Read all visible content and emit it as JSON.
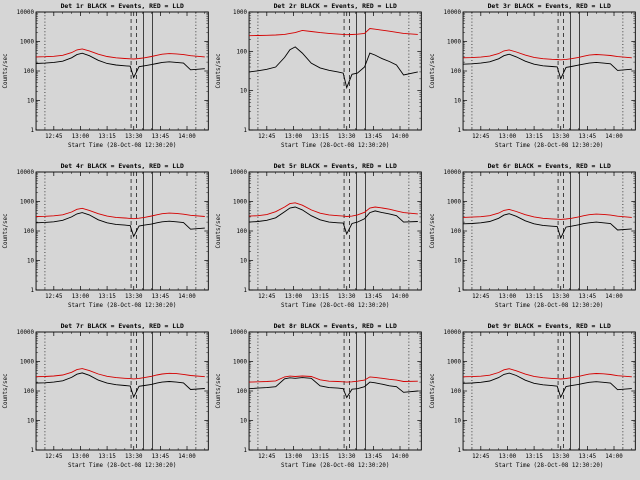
{
  "page": {
    "background": "#d6d6d6"
  },
  "shared_x_minutes_after_1230": [
    5,
    10,
    15,
    20,
    25,
    28,
    31,
    35,
    40,
    45,
    50,
    55,
    58,
    60,
    63,
    66,
    70,
    73,
    76,
    80,
    84,
    88,
    92,
    100
  ],
  "chart_data": [
    {
      "type": "line",
      "title": "Det 1r BLACK = Events, RED = LLD",
      "xlabel": "Start Time (28-Oct-08 12:30:20)",
      "ylabel": "Counts/sec",
      "xlim": [
        5,
        102
      ],
      "xtick_values": [
        15,
        30,
        45,
        60,
        75,
        90
      ],
      "xtick_labels": [
        "12:45",
        "13:00",
        "13:15",
        "13:30",
        "13:45",
        "14:00"
      ],
      "ylim": [
        1,
        10000
      ],
      "ytick_labels": [
        "1",
        "10",
        "100",
        "1000",
        "10000"
      ],
      "grid": false,
      "vlines": [
        {
          "x": 10,
          "style": "dotted"
        },
        {
          "x": 95,
          "style": "dotted"
        },
        {
          "x": 58.5,
          "style": "dashed"
        },
        {
          "x": 61.5,
          "style": "dashed"
        },
        {
          "x": 65.5,
          "style": "solid"
        },
        {
          "x": 70.5,
          "style": "solid"
        }
      ],
      "series": [
        {
          "name": "Events",
          "color": "#000000",
          "values": [
            180,
            185,
            195,
            215,
            280,
            360,
            400,
            330,
            230,
            180,
            160,
            150,
            145,
            60,
            140,
            150,
            165,
            180,
            195,
            205,
            195,
            185,
            110,
            120
          ]
        },
        {
          "name": "LLD",
          "color": "#d40000",
          "values": [
            300,
            305,
            315,
            340,
            420,
            520,
            560,
            480,
            370,
            310,
            280,
            265,
            260,
            255,
            265,
            280,
            310,
            340,
            370,
            390,
            380,
            360,
            330,
            300
          ]
        }
      ]
    },
    {
      "type": "line",
      "title": "Det 2r BLACK = Events, RED = LLD",
      "xlabel": "Start Time (28-Oct-08 12:30:20)",
      "ylabel": "Counts/sec",
      "xlim": [
        5,
        102
      ],
      "xtick_values": [
        15,
        30,
        45,
        60,
        75,
        90
      ],
      "xtick_labels": [
        "12:45",
        "13:00",
        "13:15",
        "13:30",
        "13:45",
        "14:00"
      ],
      "ylim": [
        1,
        1000
      ],
      "ytick_labels": [
        "1",
        "10",
        "100",
        "1000"
      ],
      "grid": false,
      "vlines": [
        {
          "x": 10,
          "style": "dotted"
        },
        {
          "x": 95,
          "style": "dotted"
        },
        {
          "x": 58.5,
          "style": "dashed"
        },
        {
          "x": 61.5,
          "style": "dashed"
        },
        {
          "x": 65.5,
          "style": "solid"
        },
        {
          "x": 70.5,
          "style": "solid"
        }
      ],
      "series": [
        {
          "name": "Events",
          "color": "#000000",
          "values": [
            30,
            32,
            35,
            40,
            70,
            110,
            130,
            90,
            50,
            38,
            33,
            30,
            28,
            12,
            26,
            28,
            40,
            90,
            80,
            65,
            55,
            45,
            25,
            30
          ]
        },
        {
          "name": "LLD",
          "color": "#d40000",
          "values": [
            250,
            252,
            255,
            260,
            270,
            285,
            300,
            340,
            320,
            300,
            285,
            275,
            270,
            265,
            268,
            272,
            285,
            380,
            365,
            345,
            325,
            305,
            285,
            270
          ]
        }
      ]
    },
    {
      "type": "line",
      "title": "Det 3r BLACK = Events, RED = LLD",
      "xlabel": "Start Time (28-Oct-08 12:30:20)",
      "ylabel": "Counts/sec",
      "xlim": [
        5,
        102
      ],
      "xtick_values": [
        15,
        30,
        45,
        60,
        75,
        90
      ],
      "xtick_labels": [
        "12:45",
        "13:00",
        "13:15",
        "13:30",
        "13:45",
        "14:00"
      ],
      "ylim": [
        1,
        10000
      ],
      "ytick_labels": [
        "1",
        "10",
        "100",
        "1000",
        "10000"
      ],
      "grid": false,
      "vlines": [
        {
          "x": 10,
          "style": "dotted"
        },
        {
          "x": 95,
          "style": "dotted"
        },
        {
          "x": 58.5,
          "style": "dashed"
        },
        {
          "x": 61.5,
          "style": "dashed"
        },
        {
          "x": 65.5,
          "style": "solid"
        },
        {
          "x": 70.5,
          "style": "solid"
        }
      ],
      "series": [
        {
          "name": "Events",
          "color": "#000000",
          "values": [
            170,
            175,
            185,
            205,
            260,
            330,
            370,
            300,
            215,
            170,
            150,
            142,
            138,
            55,
            132,
            142,
            158,
            172,
            185,
            195,
            185,
            175,
            105,
            115
          ]
        },
        {
          "name": "LLD",
          "color": "#d40000",
          "values": [
            280,
            285,
            295,
            320,
            390,
            480,
            520,
            440,
            345,
            290,
            262,
            250,
            245,
            240,
            248,
            262,
            290,
            318,
            345,
            362,
            352,
            335,
            308,
            280
          ]
        }
      ]
    },
    {
      "type": "line",
      "title": "Det 4r BLACK = Events, RED = LLD",
      "xlabel": "Start Time (28-Oct-08 12:30:20)",
      "ylabel": "Counts/sec",
      "xlim": [
        5,
        102
      ],
      "xtick_values": [
        15,
        30,
        45,
        60,
        75,
        90
      ],
      "xtick_labels": [
        "12:45",
        "13:00",
        "13:15",
        "13:30",
        "13:45",
        "14:00"
      ],
      "ylim": [
        1,
        10000
      ],
      "ytick_labels": [
        "1",
        "10",
        "100",
        "1000",
        "10000"
      ],
      "grid": false,
      "vlines": [
        {
          "x": 10,
          "style": "dotted"
        },
        {
          "x": 95,
          "style": "dotted"
        },
        {
          "x": 58.5,
          "style": "dashed"
        },
        {
          "x": 61.5,
          "style": "dashed"
        },
        {
          "x": 65.5,
          "style": "solid"
        },
        {
          "x": 70.5,
          "style": "solid"
        }
      ],
      "series": [
        {
          "name": "Events",
          "color": "#000000",
          "values": [
            190,
            195,
            205,
            230,
            300,
            380,
            420,
            350,
            240,
            190,
            168,
            158,
            152,
            65,
            148,
            158,
            172,
            190,
            205,
            215,
            205,
            192,
            115,
            125
          ]
        },
        {
          "name": "LLD",
          "color": "#d40000",
          "values": [
            310,
            315,
            328,
            355,
            440,
            545,
            590,
            500,
            385,
            320,
            290,
            275,
            268,
            262,
            272,
            290,
            322,
            355,
            385,
            405,
            395,
            372,
            340,
            310
          ]
        }
      ]
    },
    {
      "type": "line",
      "title": "Det 5r BLACK = Events, RED = LLD",
      "xlabel": "Start Time (28-Oct-08 12:30:20)",
      "ylabel": "Counts/sec",
      "xlim": [
        5,
        102
      ],
      "xtick_values": [
        15,
        30,
        45,
        60,
        75,
        90
      ],
      "xtick_labels": [
        "12:45",
        "13:00",
        "13:15",
        "13:30",
        "13:45",
        "14:00"
      ],
      "ylim": [
        1,
        10000
      ],
      "ytick_labels": [
        "1",
        "10",
        "100",
        "1000",
        "10000"
      ],
      "grid": false,
      "vlines": [
        {
          "x": 10,
          "style": "dotted"
        },
        {
          "x": 95,
          "style": "dotted"
        },
        {
          "x": 58.5,
          "style": "dashed"
        },
        {
          "x": 61.5,
          "style": "dashed"
        },
        {
          "x": 65.5,
          "style": "solid"
        },
        {
          "x": 70.5,
          "style": "solid"
        }
      ],
      "series": [
        {
          "name": "Events",
          "color": "#000000",
          "values": [
            200,
            210,
            230,
            280,
            450,
            600,
            650,
            520,
            330,
            240,
            200,
            190,
            185,
            80,
            180,
            200,
            260,
            420,
            480,
            420,
            380,
            330,
            200,
            210
          ]
        },
        {
          "name": "LLD",
          "color": "#d40000",
          "values": [
            320,
            330,
            360,
            450,
            650,
            850,
            900,
            750,
            520,
            400,
            350,
            330,
            320,
            310,
            320,
            350,
            430,
            600,
            650,
            600,
            550,
            480,
            420,
            380
          ]
        }
      ]
    },
    {
      "type": "line",
      "title": "Det 6r BLACK = Events, RED = LLD",
      "xlabel": "Start Time (28-Oct-08 12:30:20)",
      "ylabel": "Counts/sec",
      "xlim": [
        5,
        102
      ],
      "xtick_values": [
        15,
        30,
        45,
        60,
        75,
        90
      ],
      "xtick_labels": [
        "12:45",
        "13:00",
        "13:15",
        "13:30",
        "13:45",
        "14:00"
      ],
      "ylim": [
        1,
        10000
      ],
      "ytick_labels": [
        "1",
        "10",
        "100",
        "1000",
        "10000"
      ],
      "grid": false,
      "vlines": [
        {
          "x": 10,
          "style": "dotted"
        },
        {
          "x": 95,
          "style": "dotted"
        },
        {
          "x": 58.5,
          "style": "dashed"
        },
        {
          "x": 61.5,
          "style": "dashed"
        },
        {
          "x": 65.5,
          "style": "solid"
        },
        {
          "x": 70.5,
          "style": "solid"
        }
      ],
      "series": [
        {
          "name": "Events",
          "color": "#000000",
          "values": [
            175,
            180,
            190,
            210,
            270,
            345,
            385,
            315,
            222,
            175,
            155,
            146,
            141,
            58,
            136,
            146,
            162,
            178,
            190,
            200,
            190,
            180,
            108,
            118
          ]
        },
        {
          "name": "LLD",
          "color": "#d40000",
          "values": [
            290,
            295,
            305,
            330,
            405,
            500,
            540,
            458,
            356,
            300,
            270,
            258,
            252,
            247,
            255,
            270,
            300,
            330,
            356,
            375,
            365,
            347,
            318,
            290
          ]
        }
      ]
    },
    {
      "type": "line",
      "title": "Det 7r BLACK = Events, RED = LLD",
      "xlabel": "Start Time (28-Oct-08 12:30:20)",
      "ylabel": "Counts/sec",
      "xlim": [
        5,
        102
      ],
      "xtick_values": [
        15,
        30,
        45,
        60,
        75,
        90
      ],
      "xtick_labels": [
        "12:45",
        "13:00",
        "13:15",
        "13:30",
        "13:45",
        "14:00"
      ],
      "ylim": [
        1,
        10000
      ],
      "ytick_labels": [
        "1",
        "10",
        "100",
        "1000",
        "10000"
      ],
      "grid": false,
      "vlines": [
        {
          "x": 10,
          "style": "dotted"
        },
        {
          "x": 95,
          "style": "dotted"
        },
        {
          "x": 58.5,
          "style": "dashed"
        },
        {
          "x": 61.5,
          "style": "dashed"
        },
        {
          "x": 65.5,
          "style": "solid"
        },
        {
          "x": 70.5,
          "style": "solid"
        }
      ],
      "series": [
        {
          "name": "Events",
          "color": "#000000",
          "values": [
            185,
            190,
            200,
            222,
            290,
            370,
            410,
            340,
            235,
            185,
            164,
            154,
            148,
            62,
            144,
            154,
            168,
            185,
            200,
            210,
            200,
            188,
            112,
            122
          ]
        },
        {
          "name": "LLD",
          "color": "#d40000",
          "values": [
            305,
            310,
            322,
            348,
            430,
            532,
            575,
            490,
            378,
            315,
            285,
            270,
            264,
            258,
            268,
            285,
            316,
            348,
            378,
            398,
            388,
            366,
            334,
            305
          ]
        }
      ]
    },
    {
      "type": "line",
      "title": "Det 8r BLACK = Events, RED = LLD",
      "xlabel": "Start Time (28-Oct-08 12:30:20)",
      "ylabel": "Counts/sec",
      "xlim": [
        5,
        102
      ],
      "xtick_values": [
        15,
        30,
        45,
        60,
        75,
        90
      ],
      "xtick_labels": [
        "12:45",
        "13:00",
        "13:15",
        "13:30",
        "13:45",
        "14:00"
      ],
      "ylim": [
        1,
        10000
      ],
      "ytick_labels": [
        "1",
        "10",
        "100",
        "1000",
        "10000"
      ],
      "grid": false,
      "vlines": [
        {
          "x": 10,
          "style": "dotted"
        },
        {
          "x": 95,
          "style": "dotted"
        },
        {
          "x": 58.5,
          "style": "dashed"
        },
        {
          "x": 61.5,
          "style": "dashed"
        },
        {
          "x": 65.5,
          "style": "solid"
        },
        {
          "x": 70.5,
          "style": "solid"
        }
      ],
      "series": [
        {
          "name": "Events",
          "color": "#000000",
          "values": [
            120,
            125,
            130,
            140,
            260,
            280,
            270,
            285,
            270,
            150,
            130,
            125,
            120,
            60,
            115,
            120,
            140,
            200,
            190,
            170,
            150,
            140,
            90,
            100
          ]
        },
        {
          "name": "LLD",
          "color": "#d40000",
          "values": [
            200,
            205,
            210,
            220,
            300,
            320,
            310,
            322,
            310,
            240,
            215,
            210,
            205,
            200,
            205,
            215,
            235,
            300,
            290,
            270,
            250,
            235,
            210,
            215
          ]
        }
      ]
    },
    {
      "type": "line",
      "title": "Det 9r BLACK = Events, RED = LLD",
      "xlabel": "Start Time (28-Oct-08 12:30:20)",
      "ylabel": "Counts/sec",
      "xlim": [
        5,
        102
      ],
      "xtick_values": [
        15,
        30,
        45,
        60,
        75,
        90
      ],
      "xtick_labels": [
        "12:45",
        "13:00",
        "13:15",
        "13:30",
        "13:45",
        "14:00"
      ],
      "ylim": [
        1,
        10000
      ],
      "ytick_labels": [
        "1",
        "10",
        "100",
        "1000",
        "10000"
      ],
      "grid": false,
      "vlines": [
        {
          "x": 10,
          "style": "dotted"
        },
        {
          "x": 95,
          "style": "dotted"
        },
        {
          "x": 58.5,
          "style": "dashed"
        },
        {
          "x": 61.5,
          "style": "dashed"
        },
        {
          "x": 65.5,
          "style": "solid"
        },
        {
          "x": 70.5,
          "style": "solid"
        }
      ],
      "series": [
        {
          "name": "Events",
          "color": "#000000",
          "values": [
            182,
            187,
            197,
            218,
            285,
            365,
            405,
            335,
            232,
            182,
            162,
            152,
            146,
            61,
            142,
            152,
            167,
            182,
            197,
            207,
            197,
            186,
            111,
            121
          ]
        },
        {
          "name": "LLD",
          "color": "#d40000",
          "values": [
            302,
            307,
            318,
            343,
            425,
            525,
            568,
            484,
            373,
            312,
            282,
            267,
            262,
            256,
            266,
            282,
            313,
            343,
            373,
            393,
            383,
            362,
            331,
            302
          ]
        }
      ]
    }
  ]
}
